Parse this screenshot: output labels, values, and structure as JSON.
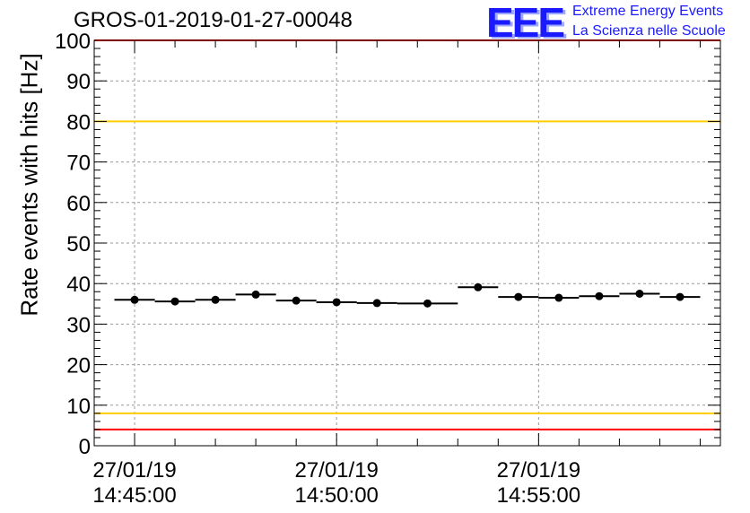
{
  "header": {
    "title": "GROS-01-2019-01-27-00048"
  },
  "logo": {
    "mark": "EEE",
    "line1": "Extreme Energy Events",
    "line2": "La Scienza nelle Scuole"
  },
  "colors": {
    "data": "#000000",
    "red_threshold": "#ff0000",
    "yellow_threshold": "#ffcc00",
    "grid": "#9a9a9a",
    "logo": "#1a1aff"
  },
  "chart_data": {
    "type": "scatter",
    "title": "GROS-01-2019-01-27-00048",
    "xlabel": "",
    "ylabel": "Rate events with hits [Hz]",
    "ylim": [
      0,
      100
    ],
    "yticks": [
      0,
      10,
      20,
      30,
      40,
      50,
      60,
      70,
      80,
      90,
      100
    ],
    "xlim": [
      "27/01/19 14:44:00",
      "27/01/19 14:59:30"
    ],
    "xticks": [
      {
        "time": "27/01/19 14:45:00",
        "date": "27/01/19",
        "clock": "14:45:00"
      },
      {
        "time": "27/01/19 14:50:00",
        "date": "27/01/19",
        "clock": "14:50:00"
      },
      {
        "time": "27/01/19 14:55:00",
        "date": "27/01/19",
        "clock": "14:55:00"
      }
    ],
    "grid": true,
    "reference_lines": [
      {
        "y": 100,
        "color": "#ff0000"
      },
      {
        "y": 80,
        "color": "#ffcc00"
      },
      {
        "y": 8,
        "color": "#ffcc00"
      },
      {
        "y": 4,
        "color": "#ff0000"
      }
    ],
    "series": [
      {
        "points": [
          {
            "x_start": "27/01/19 14:44:30",
            "x_end": "27/01/19 14:45:30",
            "y": 36.0
          },
          {
            "x_start": "27/01/19 14:45:30",
            "x_end": "27/01/19 14:46:30",
            "y": 35.6
          },
          {
            "x_start": "27/01/19 14:46:30",
            "x_end": "27/01/19 14:47:30",
            "y": 36.0
          },
          {
            "x_start": "27/01/19 14:47:30",
            "x_end": "27/01/19 14:48:30",
            "y": 37.3
          },
          {
            "x_start": "27/01/19 14:48:30",
            "x_end": "27/01/19 14:49:30",
            "y": 35.8
          },
          {
            "x_start": "27/01/19 14:49:30",
            "x_end": "27/01/19 14:50:30",
            "y": 35.4
          },
          {
            "x_start": "27/01/19 14:50:30",
            "x_end": "27/01/19 14:51:30",
            "y": 35.2
          },
          {
            "x_start": "27/01/19 14:51:30",
            "x_end": "27/01/19 14:53:00",
            "y": 35.1
          },
          {
            "x_start": "27/01/19 14:53:00",
            "x_end": "27/01/19 14:54:00",
            "y": 39.1
          },
          {
            "x_start": "27/01/19 14:54:00",
            "x_end": "27/01/19 14:55:00",
            "y": 36.7
          },
          {
            "x_start": "27/01/19 14:55:00",
            "x_end": "27/01/19 14:56:00",
            "y": 36.5
          },
          {
            "x_start": "27/01/19 14:56:00",
            "x_end": "27/01/19 14:57:00",
            "y": 36.9
          },
          {
            "x_start": "27/01/19 14:57:00",
            "x_end": "27/01/19 14:58:00",
            "y": 37.5
          },
          {
            "x_start": "27/01/19 14:58:00",
            "x_end": "27/01/19 14:59:00",
            "y": 36.7
          }
        ]
      }
    ]
  }
}
